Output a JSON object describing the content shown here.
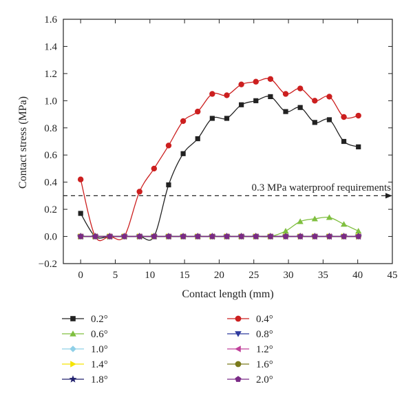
{
  "chart_data": {
    "type": "line",
    "xlabel": "Contact length (mm)",
    "ylabel": "Contact stress (MPa)",
    "xlim": [
      -2.5,
      45
    ],
    "ylim": [
      -0.2,
      1.6
    ],
    "xticks": [
      0,
      5,
      10,
      15,
      20,
      25,
      30,
      35,
      40,
      45
    ],
    "yticks": [
      -0.2,
      0.0,
      0.2,
      0.4,
      0.6,
      0.8,
      1.0,
      1.2,
      1.4,
      1.6
    ],
    "ytick_labels": [
      "−0.2",
      "0.0",
      "0.2",
      "0.4",
      "0.6",
      "0.8",
      "1.0",
      "1.2",
      "1.4",
      "1.6"
    ],
    "grid": false,
    "legend_position": "bottom",
    "annotations": [
      {
        "text": "0.3 MPa waterproof requirements",
        "y": 0.3,
        "style": "dashed-arrow"
      }
    ],
    "series": [
      {
        "name": "0.2°",
        "color": "#222222",
        "marker": "square",
        "x": [
          0,
          2.1,
          4.2,
          6.3,
          8.5,
          10.6,
          12.7,
          14.8,
          16.9,
          19.0,
          21.1,
          23.2,
          25.3,
          27.4,
          29.6,
          31.7,
          33.8,
          35.9,
          38.0,
          40.1
        ],
        "y": [
          0.17,
          0,
          0,
          0,
          0,
          0,
          0.38,
          0.61,
          0.72,
          0.87,
          0.87,
          0.97,
          1.0,
          1.03,
          0.92,
          0.95,
          0.84,
          0.86,
          0.7,
          0.66
        ]
      },
      {
        "name": "0.4°",
        "color": "#cc1f1f",
        "marker": "circle",
        "x": [
          0,
          2.1,
          4.2,
          6.3,
          8.5,
          10.6,
          12.7,
          14.8,
          16.9,
          19.0,
          21.1,
          23.2,
          25.3,
          27.4,
          29.6,
          31.7,
          33.8,
          35.9,
          38.0,
          40.1
        ],
        "y": [
          0.42,
          0,
          0,
          0,
          0.33,
          0.5,
          0.67,
          0.85,
          0.92,
          1.05,
          1.04,
          1.12,
          1.14,
          1.16,
          1.05,
          1.09,
          1.0,
          1.03,
          0.88,
          0.89
        ]
      },
      {
        "name": "0.6°",
        "color": "#7fbf3f",
        "marker": "triangle-up",
        "x": [
          0,
          2.1,
          4.2,
          6.3,
          8.5,
          10.6,
          12.7,
          14.8,
          16.9,
          19.0,
          21.1,
          23.2,
          25.3,
          27.4,
          29.6,
          31.7,
          33.8,
          35.9,
          38.0,
          40.1
        ],
        "y": [
          0,
          0,
          0,
          0,
          0,
          0,
          0,
          0,
          0,
          0,
          0,
          0,
          0,
          0,
          0.04,
          0.11,
          0.13,
          0.14,
          0.09,
          0.04
        ]
      },
      {
        "name": "0.8°",
        "color": "#2e3a9e",
        "marker": "triangle-down",
        "x": [
          0,
          2.1,
          4.2,
          6.3,
          8.5,
          10.6,
          12.7,
          14.8,
          16.9,
          19.0,
          21.1,
          23.2,
          25.3,
          27.4,
          29.6,
          31.7,
          33.8,
          35.9,
          38.0,
          40.1
        ],
        "y": [
          0,
          0,
          0,
          0,
          0,
          0,
          0,
          0,
          0,
          0,
          0,
          0,
          0,
          0,
          0,
          0,
          0,
          0,
          0,
          0
        ]
      },
      {
        "name": "1.0°",
        "color": "#8fd0e8",
        "marker": "diamond",
        "x": [
          0,
          2.1,
          4.2,
          6.3,
          8.5,
          10.6,
          12.7,
          14.8,
          16.9,
          19.0,
          21.1,
          23.2,
          25.3,
          27.4,
          29.6,
          31.7,
          33.8,
          35.9,
          38.0,
          40.1
        ],
        "y": [
          0,
          0,
          0,
          0,
          0,
          0,
          0,
          0,
          0,
          0,
          0,
          0,
          0,
          0,
          0,
          0,
          0,
          0,
          0,
          0
        ]
      },
      {
        "name": "1.2°",
        "color": "#c0409a",
        "marker": "triangle-left",
        "x": [
          0,
          2.1,
          4.2,
          6.3,
          8.5,
          10.6,
          12.7,
          14.8,
          16.9,
          19.0,
          21.1,
          23.2,
          25.3,
          27.4,
          29.6,
          31.7,
          33.8,
          35.9,
          38.0,
          40.1
        ],
        "y": [
          0,
          0,
          0,
          0,
          0,
          0,
          0,
          0,
          0,
          0,
          0,
          0,
          0,
          0,
          0,
          0,
          0,
          0,
          0,
          0
        ]
      },
      {
        "name": "1.4°",
        "color": "#f5e400",
        "marker": "triangle-right",
        "x": [
          0,
          2.1,
          4.2,
          6.3,
          8.5,
          10.6,
          12.7,
          14.8,
          16.9,
          19.0,
          21.1,
          23.2,
          25.3,
          27.4,
          29.6,
          31.7,
          33.8,
          35.9,
          38.0,
          40.1
        ],
        "y": [
          0,
          0,
          0,
          0,
          0,
          0,
          0,
          0,
          0,
          0,
          0,
          0,
          0,
          0,
          0,
          0,
          0,
          0,
          0,
          0
        ]
      },
      {
        "name": "1.6°",
        "color": "#7a7a1c",
        "marker": "circle",
        "x": [
          0,
          2.1,
          4.2,
          6.3,
          8.5,
          10.6,
          12.7,
          14.8,
          16.9,
          19.0,
          21.1,
          23.2,
          25.3,
          27.4,
          29.6,
          31.7,
          33.8,
          35.9,
          38.0,
          40.1
        ],
        "y": [
          0,
          0,
          0,
          0,
          0,
          0,
          0,
          0,
          0,
          0,
          0,
          0,
          0,
          0,
          0,
          0,
          0,
          0,
          0,
          0
        ]
      },
      {
        "name": "1.8°",
        "color": "#22226e",
        "marker": "star",
        "x": [
          0,
          2.1,
          4.2,
          6.3,
          8.5,
          10.6,
          12.7,
          14.8,
          16.9,
          19.0,
          21.1,
          23.2,
          25.3,
          27.4,
          29.6,
          31.7,
          33.8,
          35.9,
          38.0,
          40.1
        ],
        "y": [
          0,
          0,
          0,
          0,
          0,
          0,
          0,
          0,
          0,
          0,
          0,
          0,
          0,
          0,
          0,
          0,
          0,
          0,
          0,
          0
        ]
      },
      {
        "name": "2.0°",
        "color": "#7a2a86",
        "marker": "pentagon",
        "x": [
          0,
          2.1,
          4.2,
          6.3,
          8.5,
          10.6,
          12.7,
          14.8,
          16.9,
          19.0,
          21.1,
          23.2,
          25.3,
          27.4,
          29.6,
          31.7,
          33.8,
          35.9,
          38.0,
          40.1
        ],
        "y": [
          0,
          0,
          0,
          0,
          0,
          0,
          0,
          0,
          0,
          0,
          0,
          0,
          0,
          0,
          0,
          0,
          0,
          0,
          0,
          0
        ]
      }
    ]
  }
}
